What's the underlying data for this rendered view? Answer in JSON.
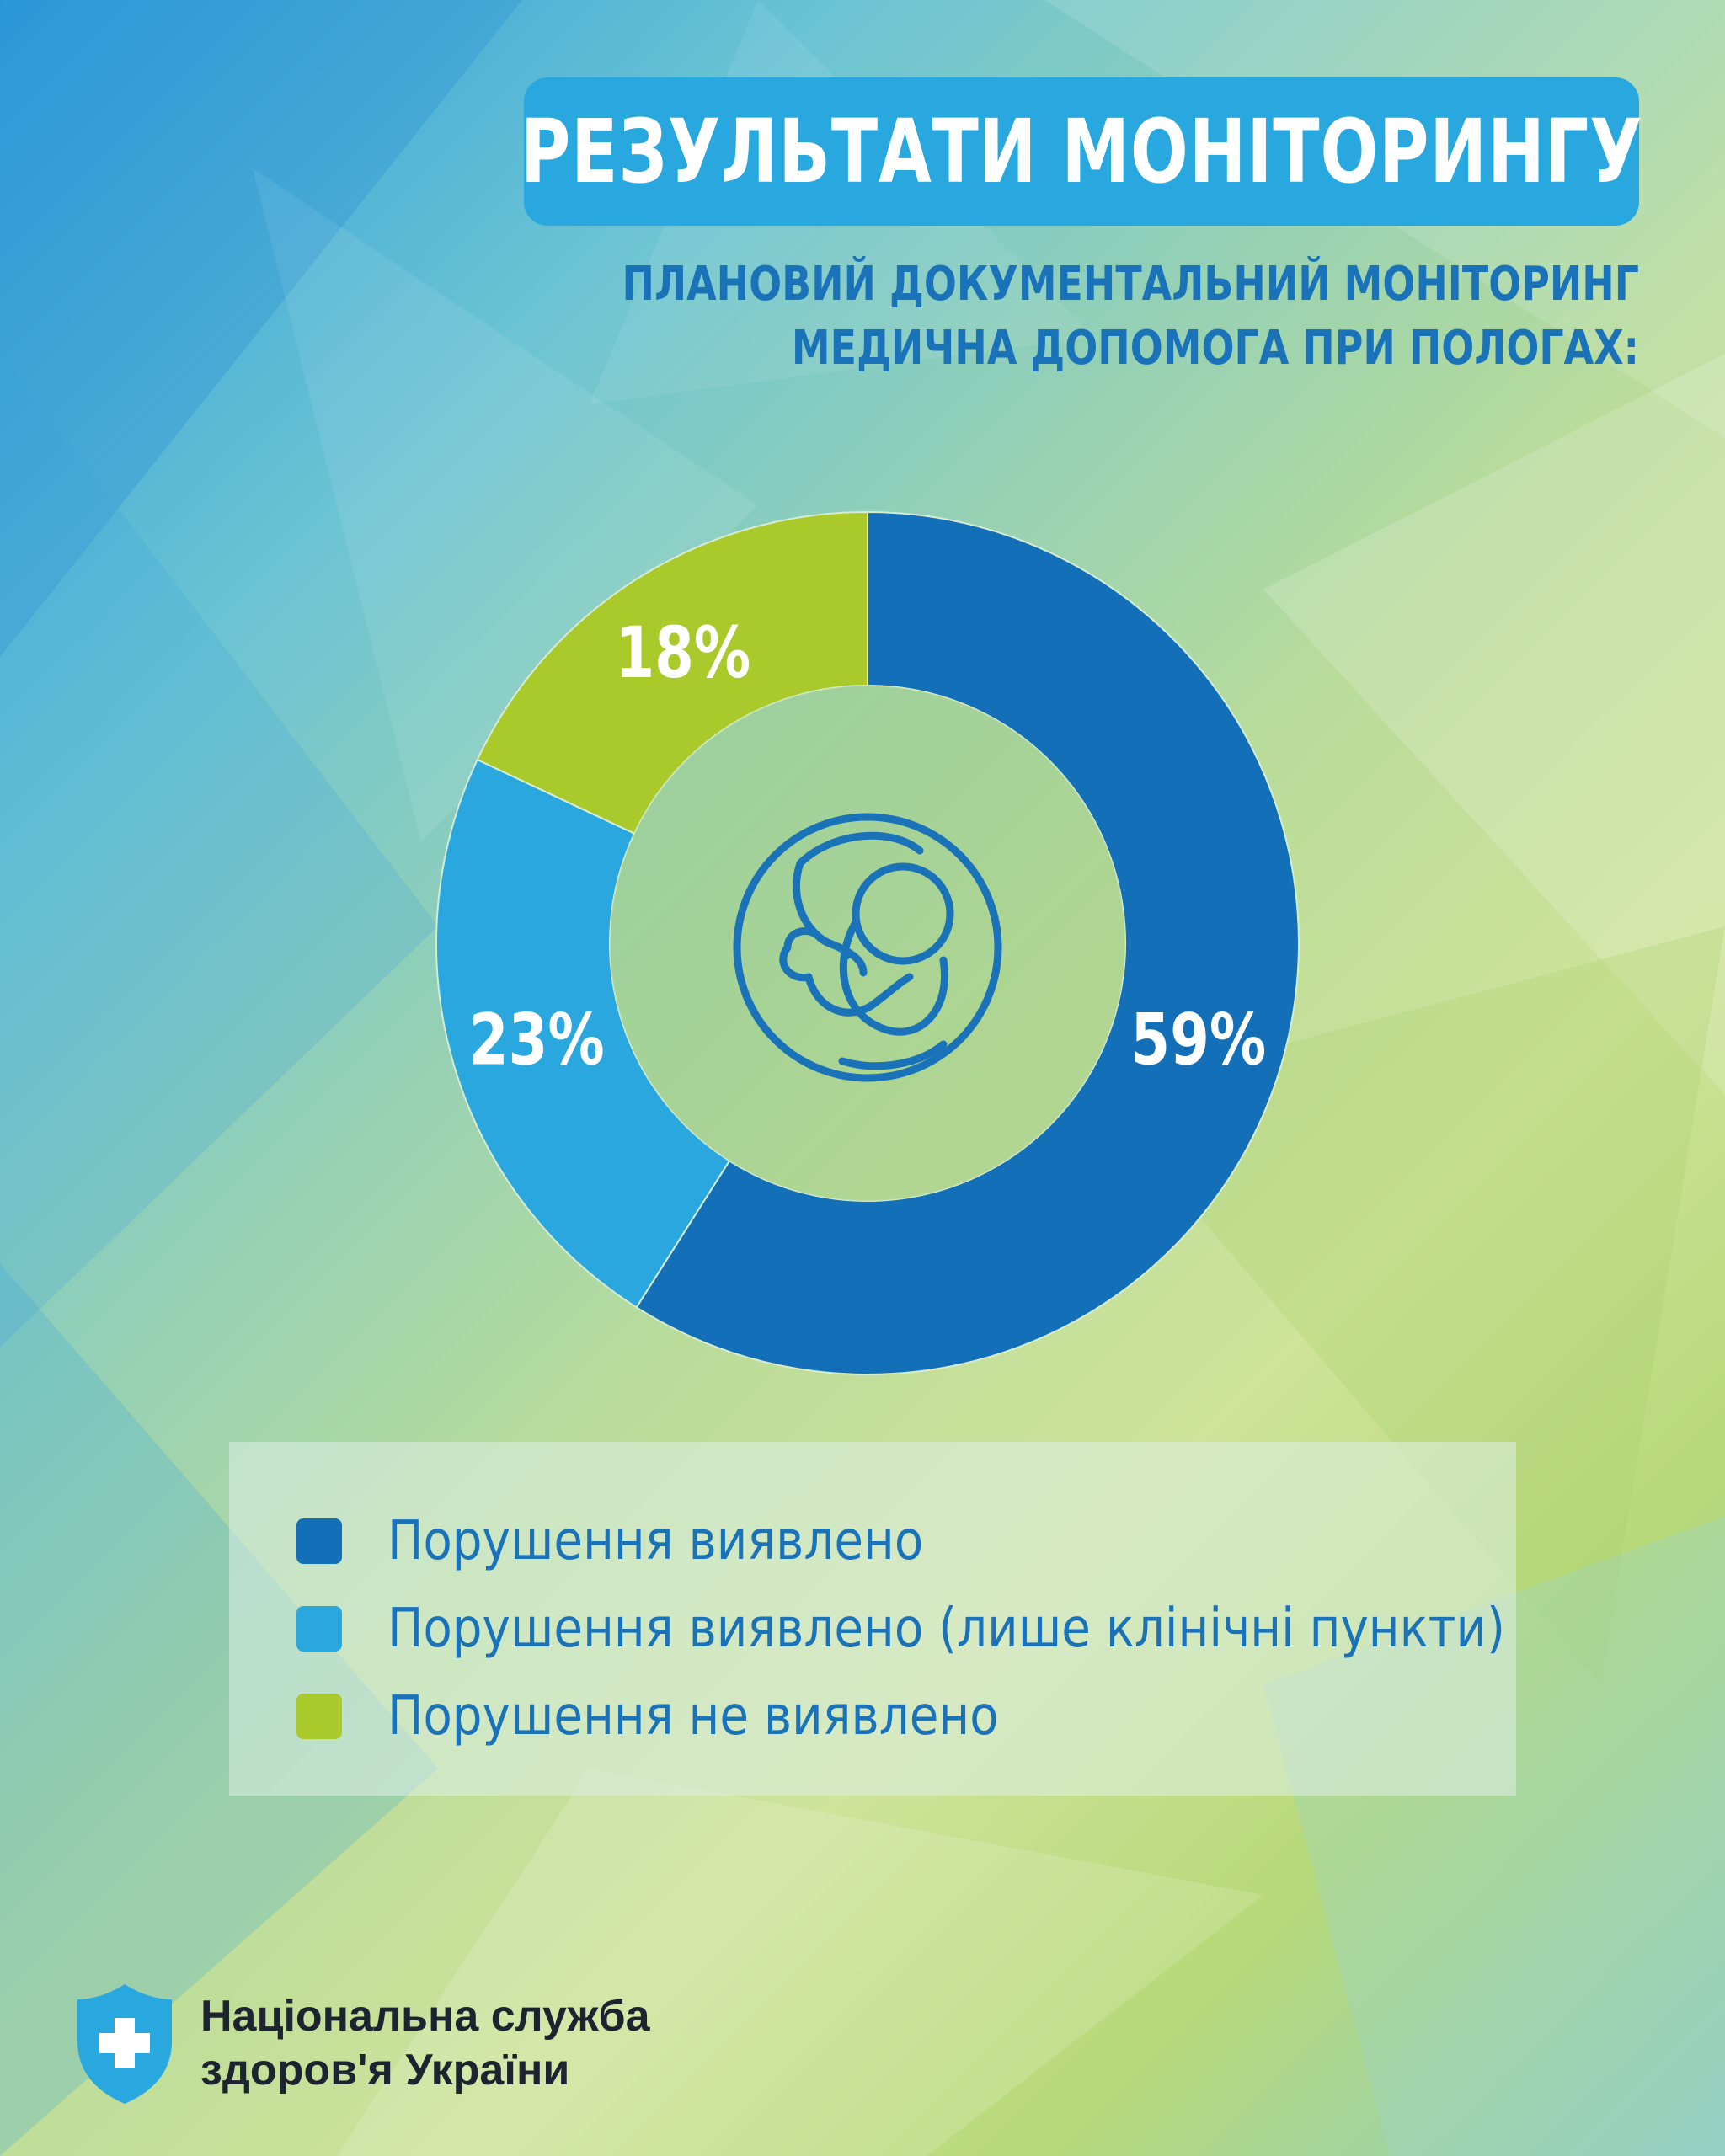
{
  "header": {
    "title": "РЕЗУЛЬТАТИ МОНІТОРИНГУ",
    "subtitle_line1": "ПЛАНОВИЙ ДОКУМЕНТАЛЬНИЙ МОНІТОРИНГ",
    "subtitle_line2": "МЕДИЧНА ДОПОМОГА ПРИ ПОЛОГАХ:"
  },
  "chart_data": {
    "type": "pie",
    "categories": [
      "Порушення виявлено",
      "Порушення виявлено (лише клінічні пункти)",
      "Порушення не виявлено"
    ],
    "values": [
      59,
      23,
      18
    ],
    "value_labels": [
      "59%",
      "23%",
      "18%"
    ],
    "colors": [
      "#1370b8",
      "#2ba7e0",
      "#aac92b"
    ],
    "title": "",
    "legend_position": "bottom",
    "center_icon": "fetus-icon"
  },
  "legend": {
    "items": [
      {
        "label": "Порушення виявлено",
        "color": "#1370b8"
      },
      {
        "label": "Порушення виявлено (лише клінічні пункти)",
        "color": "#2ba7e0"
      },
      {
        "label": "Порушення не виявлено",
        "color": "#aac92b"
      }
    ]
  },
  "footer": {
    "org_line1": "Національна служба",
    "org_line2": "здоров'я України",
    "logo_icon": "shield-cross-icon"
  }
}
